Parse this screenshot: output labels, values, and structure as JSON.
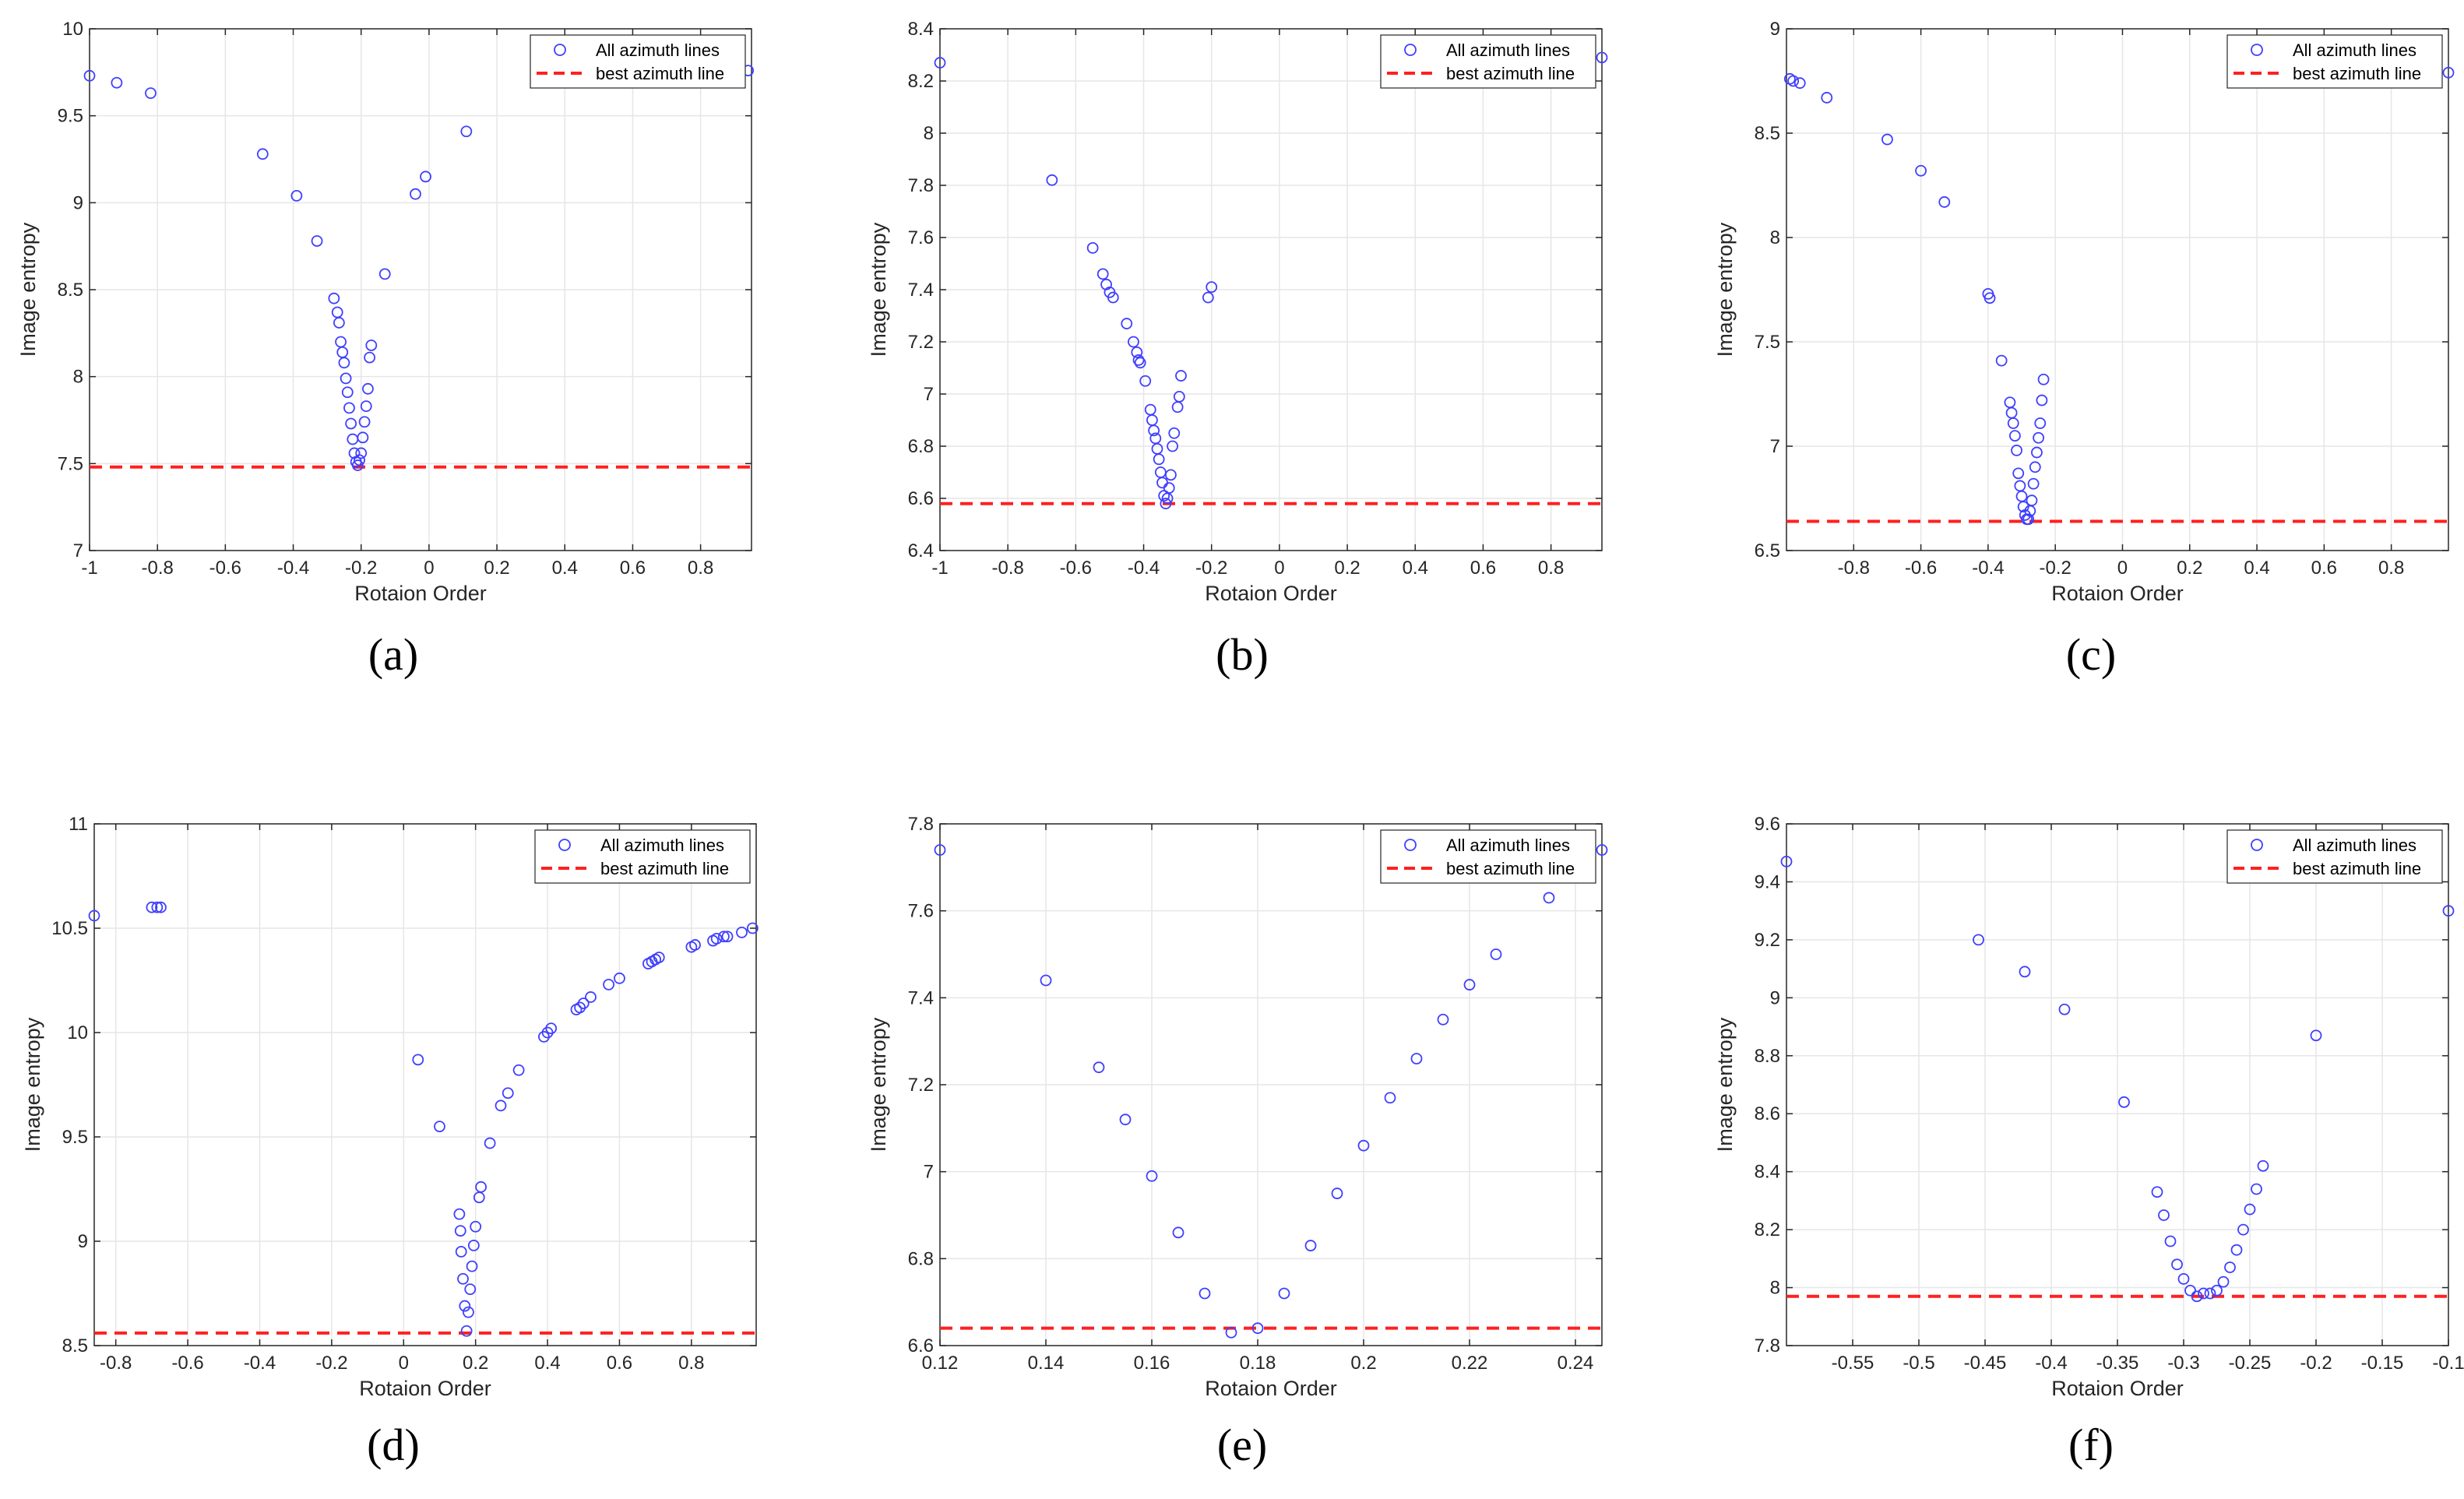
{
  "colors": {
    "points": "#3f3fff",
    "best_line": "#ff2020",
    "grid": "#e6e6e6",
    "axis": "#262626"
  },
  "chart_data": [
    {
      "panel": "(a)",
      "type": "scatter",
      "xlabel": "Rotaion Order",
      "ylabel": "Image entropy",
      "xlim": [
        -1,
        0.95
      ],
      "ylim": [
        7,
        10
      ],
      "xticks": [
        -1,
        -0.8,
        -0.6,
        -0.4,
        -0.2,
        0,
        0.2,
        0.4,
        0.6,
        0.8
      ],
      "xtick_labels": [
        "-1",
        "-0.8",
        "-0.6",
        "-0.4",
        "-0.2",
        "0",
        "0.2",
        "0.4",
        "0.6",
        "0.8"
      ],
      "yticks": [
        7,
        7.5,
        8,
        8.5,
        9,
        9.5,
        10
      ],
      "ytick_labels": [
        "7",
        "7.5",
        "8",
        "8.5",
        "9",
        "9.5",
        "10"
      ],
      "legend": [
        "All azimuth lines",
        "best azimuth line"
      ],
      "best_value": 7.48,
      "series": [
        {
          "name": "All azimuth lines",
          "points": [
            [
              -1.0,
              9.73
            ],
            [
              -0.92,
              9.69
            ],
            [
              -0.82,
              9.63
            ],
            [
              -0.49,
              9.28
            ],
            [
              -0.39,
              9.04
            ],
            [
              -0.33,
              8.78
            ],
            [
              -0.28,
              8.45
            ],
            [
              -0.27,
              8.37
            ],
            [
              -0.265,
              8.31
            ],
            [
              -0.26,
              8.2
            ],
            [
              -0.255,
              8.14
            ],
            [
              -0.25,
              8.08
            ],
            [
              -0.245,
              7.99
            ],
            [
              -0.24,
              7.91
            ],
            [
              -0.235,
              7.82
            ],
            [
              -0.23,
              7.73
            ],
            [
              -0.225,
              7.64
            ],
            [
              -0.22,
              7.56
            ],
            [
              -0.215,
              7.51
            ],
            [
              -0.21,
              7.49
            ],
            [
              -0.205,
              7.52
            ],
            [
              -0.2,
              7.56
            ],
            [
              -0.195,
              7.65
            ],
            [
              -0.19,
              7.74
            ],
            [
              -0.185,
              7.83
            ],
            [
              -0.18,
              7.93
            ],
            [
              -0.175,
              8.11
            ],
            [
              -0.17,
              8.18
            ],
            [
              -0.13,
              8.59
            ],
            [
              -0.04,
              9.05
            ],
            [
              -0.01,
              9.15
            ],
            [
              0.11,
              9.41
            ],
            [
              0.91,
              9.76
            ],
            [
              0.94,
              9.76
            ]
          ]
        }
      ]
    },
    {
      "panel": "(b)",
      "type": "scatter",
      "xlabel": "Rotaion Order",
      "ylabel": "Image entropy",
      "xlim": [
        -1,
        0.95
      ],
      "ylim": [
        6.4,
        8.4
      ],
      "xticks": [
        -1,
        -0.8,
        -0.6,
        -0.4,
        -0.2,
        0,
        0.2,
        0.4,
        0.6,
        0.8
      ],
      "xtick_labels": [
        "-1",
        "-0.8",
        "-0.6",
        "-0.4",
        "-0.2",
        "0",
        "0.2",
        "0.4",
        "0.6",
        "0.8"
      ],
      "yticks": [
        6.4,
        6.6,
        6.8,
        7,
        7.2,
        7.4,
        7.6,
        7.8,
        8,
        8.2,
        8.4
      ],
      "ytick_labels": [
        "6.4",
        "6.6",
        "6.8",
        "7",
        "7.2",
        "7.4",
        "7.6",
        "7.8",
        "8",
        "8.2",
        "8.4"
      ],
      "legend": [
        "All azimuth lines",
        "best azimuth line"
      ],
      "best_value": 6.58,
      "series": [
        {
          "name": "All azimuth lines",
          "points": [
            [
              -1.0,
              8.27
            ],
            [
              -0.67,
              7.82
            ],
            [
              -0.55,
              7.56
            ],
            [
              -0.52,
              7.46
            ],
            [
              -0.51,
              7.42
            ],
            [
              -0.5,
              7.39
            ],
            [
              -0.49,
              7.37
            ],
            [
              -0.45,
              7.27
            ],
            [
              -0.43,
              7.2
            ],
            [
              -0.42,
              7.16
            ],
            [
              -0.415,
              7.13
            ],
            [
              -0.41,
              7.12
            ],
            [
              -0.395,
              7.05
            ],
            [
              -0.38,
              6.94
            ],
            [
              -0.375,
              6.9
            ],
            [
              -0.37,
              6.86
            ],
            [
              -0.365,
              6.83
            ],
            [
              -0.36,
              6.79
            ],
            [
              -0.355,
              6.75
            ],
            [
              -0.35,
              6.7
            ],
            [
              -0.345,
              6.66
            ],
            [
              -0.34,
              6.61
            ],
            [
              -0.335,
              6.58
            ],
            [
              -0.33,
              6.6
            ],
            [
              -0.325,
              6.64
            ],
            [
              -0.32,
              6.69
            ],
            [
              -0.315,
              6.8
            ],
            [
              -0.31,
              6.85
            ],
            [
              -0.3,
              6.95
            ],
            [
              -0.295,
              6.99
            ],
            [
              -0.29,
              7.07
            ],
            [
              -0.21,
              7.37
            ],
            [
              -0.2,
              7.41
            ],
            [
              0.89,
              8.32
            ],
            [
              0.95,
              8.29
            ]
          ]
        }
      ]
    },
    {
      "panel": "(c)",
      "type": "scatter",
      "xlabel": "Rotaion Order",
      "ylabel": "Image entropy",
      "xlim": [
        -1,
        0.97
      ],
      "ylim": [
        6.5,
        9
      ],
      "xticks": [
        -0.8,
        -0.6,
        -0.4,
        -0.2,
        0,
        0.2,
        0.4,
        0.6,
        0.8
      ],
      "xtick_labels": [
        "-0.8",
        "-0.6",
        "-0.4",
        "-0.2",
        "0",
        "0.2",
        "0.4",
        "0.6",
        "0.8"
      ],
      "yticks": [
        6.5,
        7,
        7.5,
        8,
        8.5,
        9
      ],
      "ytick_labels": [
        "6.5",
        "7",
        "7.5",
        "8",
        "8.5",
        "9"
      ],
      "legend": [
        "All azimuth lines",
        "best azimuth line"
      ],
      "best_value": 6.64,
      "series": [
        {
          "name": "All azimuth lines",
          "points": [
            [
              -0.99,
              8.76
            ],
            [
              -0.98,
              8.75
            ],
            [
              -0.96,
              8.74
            ],
            [
              -0.88,
              8.67
            ],
            [
              -0.7,
              8.47
            ],
            [
              -0.6,
              8.32
            ],
            [
              -0.53,
              8.17
            ],
            [
              -0.4,
              7.73
            ],
            [
              -0.395,
              7.71
            ],
            [
              -0.36,
              7.41
            ],
            [
              -0.335,
              7.21
            ],
            [
              -0.33,
              7.16
            ],
            [
              -0.325,
              7.11
            ],
            [
              -0.32,
              7.05
            ],
            [
              -0.315,
              6.98
            ],
            [
              -0.31,
              6.87
            ],
            [
              -0.305,
              6.81
            ],
            [
              -0.3,
              6.76
            ],
            [
              -0.295,
              6.71
            ],
            [
              -0.29,
              6.67
            ],
            [
              -0.285,
              6.65
            ],
            [
              -0.28,
              6.65
            ],
            [
              -0.275,
              6.69
            ],
            [
              -0.27,
              6.74
            ],
            [
              -0.265,
              6.82
            ],
            [
              -0.26,
              6.9
            ],
            [
              -0.255,
              6.97
            ],
            [
              -0.25,
              7.04
            ],
            [
              -0.245,
              7.11
            ],
            [
              -0.24,
              7.22
            ],
            [
              -0.235,
              7.32
            ],
            [
              0.97,
              8.79
            ]
          ]
        }
      ]
    },
    {
      "panel": "(d)",
      "type": "scatter",
      "xlabel": "Rotaion Order",
      "ylabel": "Image entropy",
      "xlim": [
        -0.86,
        0.98
      ],
      "ylim": [
        8.5,
        11
      ],
      "xticks": [
        -0.8,
        -0.6,
        -0.4,
        -0.2,
        0,
        0.2,
        0.4,
        0.6,
        0.8
      ],
      "xtick_labels": [
        "-0.8",
        "-0.6",
        "-0.4",
        "-0.2",
        "0",
        "0.2",
        "0.4",
        "0.6",
        "0.8"
      ],
      "yticks": [
        8.5,
        9,
        9.5,
        10,
        10.5,
        11
      ],
      "ytick_labels": [
        "8.5",
        "9",
        "9.5",
        "10",
        "10.5",
        "11"
      ],
      "legend": [
        "All azimuth lines",
        "best azimuth line"
      ],
      "best_value": 8.56,
      "series": [
        {
          "name": "All azimuth lines",
          "points": [
            [
              -0.86,
              10.56
            ],
            [
              -0.7,
              10.6
            ],
            [
              -0.685,
              10.6
            ],
            [
              -0.675,
              10.6
            ],
            [
              0.04,
              9.87
            ],
            [
              0.1,
              9.55
            ],
            [
              0.155,
              9.13
            ],
            [
              0.158,
              9.05
            ],
            [
              0.16,
              8.95
            ],
            [
              0.165,
              8.82
            ],
            [
              0.17,
              8.69
            ],
            [
              0.175,
              8.57
            ],
            [
              0.18,
              8.66
            ],
            [
              0.185,
              8.77
            ],
            [
              0.19,
              8.88
            ],
            [
              0.195,
              8.98
            ],
            [
              0.2,
              9.07
            ],
            [
              0.21,
              9.21
            ],
            [
              0.215,
              9.26
            ],
            [
              0.24,
              9.47
            ],
            [
              0.27,
              9.65
            ],
            [
              0.29,
              9.71
            ],
            [
              0.32,
              9.82
            ],
            [
              0.39,
              9.98
            ],
            [
              0.4,
              10.0
            ],
            [
              0.41,
              10.02
            ],
            [
              0.48,
              10.11
            ],
            [
              0.49,
              10.12
            ],
            [
              0.5,
              10.14
            ],
            [
              0.52,
              10.17
            ],
            [
              0.57,
              10.23
            ],
            [
              0.6,
              10.26
            ],
            [
              0.68,
              10.33
            ],
            [
              0.69,
              10.34
            ],
            [
              0.7,
              10.35
            ],
            [
              0.71,
              10.36
            ],
            [
              0.8,
              10.41
            ],
            [
              0.81,
              10.42
            ],
            [
              0.86,
              10.44
            ],
            [
              0.87,
              10.45
            ],
            [
              0.89,
              10.46
            ],
            [
              0.9,
              10.46
            ],
            [
              0.94,
              10.48
            ],
            [
              0.97,
              10.5
            ]
          ]
        }
      ]
    },
    {
      "panel": "(e)",
      "type": "scatter",
      "xlabel": "Rotaion Order",
      "ylabel": "Image entropy",
      "xlim": [
        0.12,
        0.245
      ],
      "ylim": [
        6.6,
        7.8
      ],
      "xticks": [
        0.12,
        0.14,
        0.16,
        0.18,
        0.2,
        0.22,
        0.24
      ],
      "xtick_labels": [
        "0.12",
        "0.14",
        "0.16",
        "0.18",
        "0.2",
        "0.22",
        "0.24"
      ],
      "yticks": [
        6.6,
        6.8,
        7,
        7.2,
        7.4,
        7.6,
        7.8
      ],
      "ytick_labels": [
        "6.6",
        "6.8",
        "7",
        "7.2",
        "7.4",
        "7.6",
        "7.8"
      ],
      "legend": [
        "All azimuth lines",
        "best azimuth line"
      ],
      "best_value": 6.64,
      "series": [
        {
          "name": "All azimuth lines",
          "points": [
            [
              0.12,
              7.74
            ],
            [
              0.14,
              7.44
            ],
            [
              0.15,
              7.24
            ],
            [
              0.155,
              7.12
            ],
            [
              0.16,
              6.99
            ],
            [
              0.165,
              6.86
            ],
            [
              0.17,
              6.72
            ],
            [
              0.175,
              6.63
            ],
            [
              0.18,
              6.64
            ],
            [
              0.185,
              6.72
            ],
            [
              0.19,
              6.83
            ],
            [
              0.195,
              6.95
            ],
            [
              0.2,
              7.06
            ],
            [
              0.205,
              7.17
            ],
            [
              0.21,
              7.26
            ],
            [
              0.215,
              7.35
            ],
            [
              0.22,
              7.43
            ],
            [
              0.225,
              7.5
            ],
            [
              0.235,
              7.63
            ],
            [
              0.245,
              7.74
            ]
          ]
        }
      ]
    },
    {
      "panel": "(f)",
      "type": "scatter",
      "xlabel": "Rotaion Order",
      "ylabel": "Image entropy",
      "xlim": [
        -0.6,
        -0.1
      ],
      "ylim": [
        7.8,
        9.6
      ],
      "xticks": [
        -0.55,
        -0.5,
        -0.45,
        -0.4,
        -0.35,
        -0.3,
        -0.25,
        -0.2,
        -0.15,
        -0.1
      ],
      "xtick_labels": [
        "-0.55",
        "-0.5",
        "-0.45",
        "-0.4",
        "-0.35",
        "-0.3",
        "-0.25",
        "-0.2",
        "-0.15",
        "-0.1"
      ],
      "yticks": [
        7.8,
        8,
        8.2,
        8.4,
        8.6,
        8.8,
        9,
        9.2,
        9.4,
        9.6
      ],
      "ytick_labels": [
        "7.8",
        "8",
        "8.2",
        "8.4",
        "8.6",
        "8.8",
        "9",
        "9.2",
        "9.4",
        "9.6"
      ],
      "legend": [
        "All azimuth lines",
        "best azimuth line"
      ],
      "best_value": 7.97,
      "series": [
        {
          "name": "All azimuth lines",
          "points": [
            [
              -0.6,
              9.47
            ],
            [
              -0.455,
              9.2
            ],
            [
              -0.42,
              9.09
            ],
            [
              -0.39,
              8.96
            ],
            [
              -0.345,
              8.64
            ],
            [
              -0.32,
              8.33
            ],
            [
              -0.315,
              8.25
            ],
            [
              -0.31,
              8.16
            ],
            [
              -0.305,
              8.08
            ],
            [
              -0.3,
              8.03
            ],
            [
              -0.295,
              7.99
            ],
            [
              -0.29,
              7.97
            ],
            [
              -0.285,
              7.98
            ],
            [
              -0.28,
              7.98
            ],
            [
              -0.275,
              7.99
            ],
            [
              -0.27,
              8.02
            ],
            [
              -0.265,
              8.07
            ],
            [
              -0.26,
              8.13
            ],
            [
              -0.255,
              8.2
            ],
            [
              -0.25,
              8.27
            ],
            [
              -0.245,
              8.34
            ],
            [
              -0.24,
              8.42
            ],
            [
              -0.2,
              8.87
            ],
            [
              -0.1,
              9.3
            ]
          ]
        }
      ]
    }
  ]
}
